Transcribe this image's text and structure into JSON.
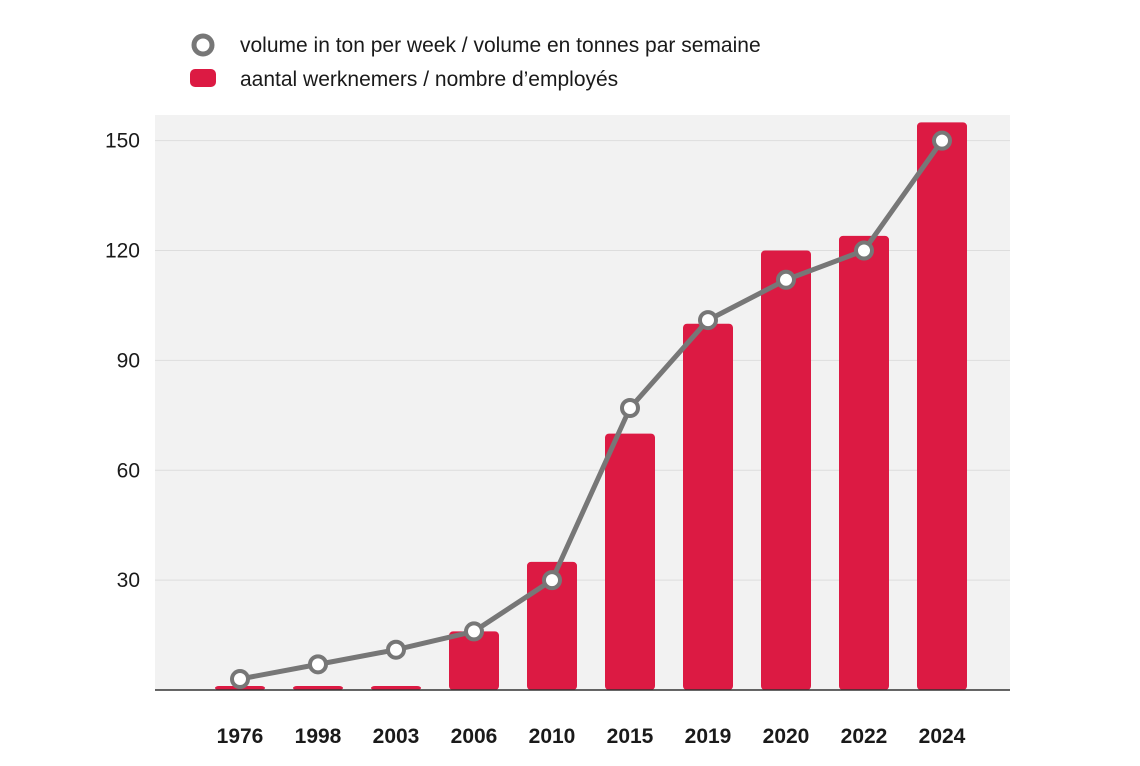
{
  "chart_data": {
    "type": "bar",
    "categories": [
      "1976",
      "1998",
      "2003",
      "2006",
      "2010",
      "2015",
      "2019",
      "2020",
      "2022",
      "2024"
    ],
    "series": [
      {
        "name": "aantal werknemers / nombre d’employés",
        "kind": "bar",
        "values": [
          1,
          1,
          1,
          16,
          35,
          70,
          100,
          120,
          124,
          155
        ]
      },
      {
        "name": "volume in ton per week / volume en tonnes par semaine",
        "kind": "line",
        "values": [
          3,
          7,
          11,
          16,
          30,
          77,
          101,
          112,
          120,
          150
        ]
      }
    ],
    "yticks": [
      30,
      60,
      90,
      120,
      150
    ],
    "ylim": [
      0,
      157
    ],
    "grid": true,
    "legend_position": "top",
    "colors": {
      "bar": "#dc1a43",
      "line": "#777777",
      "plot_background": "#f2f2f2",
      "gridline": "#dddddd",
      "axis": "#333333"
    }
  }
}
